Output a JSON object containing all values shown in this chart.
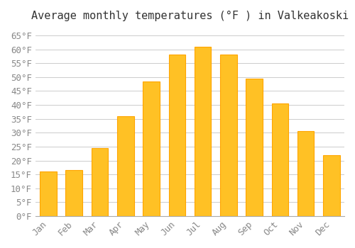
{
  "months": [
    "Jan",
    "Feb",
    "Mar",
    "Apr",
    "May",
    "Jun",
    "Jul",
    "Aug",
    "Sep",
    "Oct",
    "Nov",
    "Dec"
  ],
  "values": [
    16,
    16.5,
    24.5,
    36,
    48.5,
    58,
    61,
    58,
    49.5,
    40.5,
    30.5,
    22
  ],
  "bar_color": "#FFC125",
  "bar_edge_color": "#FFA500",
  "title": "Average monthly temperatures (°F ) in Valkeakoski",
  "ylim": [
    0,
    68
  ],
  "yticks": [
    0,
    5,
    10,
    15,
    20,
    25,
    30,
    35,
    40,
    45,
    50,
    55,
    60,
    65
  ],
  "ytick_labels": [
    "0°F",
    "5°F",
    "10°F",
    "15°F",
    "20°F",
    "25°F",
    "30°F",
    "35°F",
    "40°F",
    "45°F",
    "50°F",
    "55°F",
    "60°F",
    "65°F"
  ],
  "background_color": "#ffffff",
  "grid_color": "#cccccc",
  "title_fontsize": 11,
  "tick_fontsize": 9,
  "font_family": "monospace"
}
